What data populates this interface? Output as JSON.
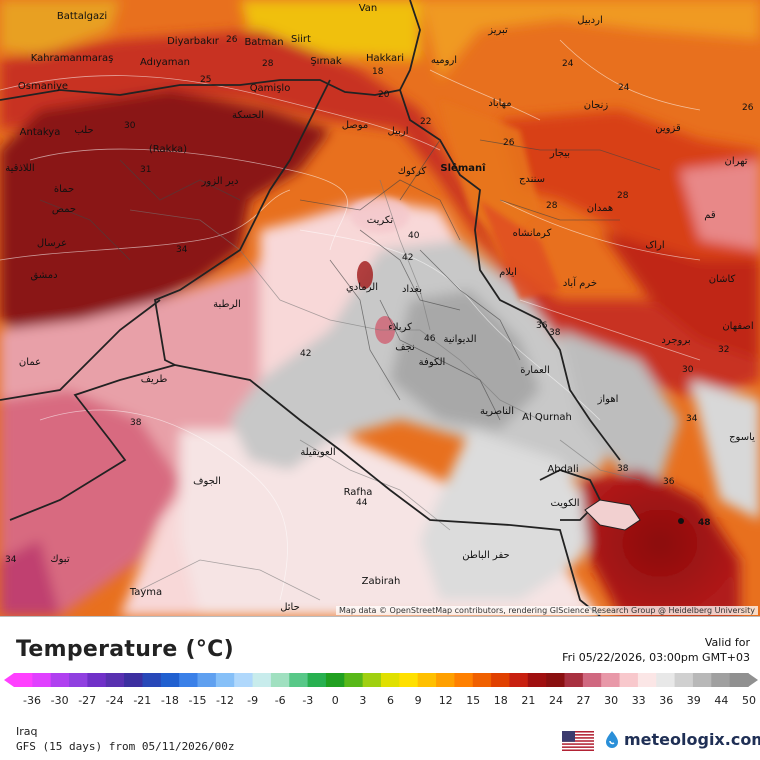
{
  "map": {
    "attribution": "Map data © OpenStreetMap contributors, rendering GIScience Research Group @ Heidelberg University",
    "places": [
      {
        "name": "Battalgazi"
      },
      {
        "name": "Kahramanmaraş"
      },
      {
        "name": "Diyarbakır"
      },
      {
        "name": "Batman"
      },
      {
        "name": "Siirt"
      },
      {
        "name": "Van"
      },
      {
        "name": "Hakkari"
      },
      {
        "name": "Şırnak"
      },
      {
        "name": "Adıyaman"
      },
      {
        "name": "Osmaniye"
      },
      {
        "name": "Qamişlo"
      },
      {
        "name": "Antakya"
      },
      {
        "name": "(Rakka)"
      },
      {
        "name": "Slêmanî"
      },
      {
        "name": "Al Qurnah"
      },
      {
        "name": "Abdali"
      },
      {
        "name": "Rafha"
      },
      {
        "name": "Zabirah"
      },
      {
        "name": "Tayma"
      },
      {
        "name": "حلب"
      },
      {
        "name": "الحسكة"
      },
      {
        "name": "موصل"
      },
      {
        "name": "اربيل"
      },
      {
        "name": "كركوك"
      },
      {
        "name": "تكريت"
      },
      {
        "name": "بغداد"
      },
      {
        "name": "كربلاء"
      },
      {
        "name": "الكوفة"
      },
      {
        "name": "العمارة"
      },
      {
        "name": "الناصرية"
      },
      {
        "name": "الرطبة"
      },
      {
        "name": "طريف"
      },
      {
        "name": "الجوف"
      },
      {
        "name": "العويقيلة"
      },
      {
        "name": "الكويت"
      },
      {
        "name": "حفر الباطن"
      },
      {
        "name": "تبوك"
      },
      {
        "name": "حائل"
      },
      {
        "name": "تبريز"
      },
      {
        "name": "اردبيل"
      },
      {
        "name": "ارومیه"
      },
      {
        "name": "زنجان"
      },
      {
        "name": "قزوين"
      },
      {
        "name": "تهران"
      },
      {
        "name": "همدان"
      },
      {
        "name": "كرمانشاه"
      },
      {
        "name": "اراک"
      },
      {
        "name": "قم"
      },
      {
        "name": "ایلام"
      },
      {
        "name": "اهواز"
      },
      {
        "name": "دمشق"
      },
      {
        "name": "حمص"
      },
      {
        "name": "حماة"
      },
      {
        "name": "الرمادي"
      },
      {
        "name": "سنندج"
      },
      {
        "name": "بیجار"
      },
      {
        "name": "مهاباد"
      },
      {
        "name": "کاشان"
      },
      {
        "name": "اصفهان"
      },
      {
        "name": "ياسوج"
      },
      {
        "name": "بروجرد"
      },
      {
        "name": "خرم آباد"
      },
      {
        "name": "دیر الزور"
      },
      {
        "name": "عمان"
      },
      {
        "name": "اللاذقية"
      },
      {
        "name": "عرسال"
      },
      {
        "name": "نجف"
      },
      {
        "name": "الديوانية"
      }
    ],
    "isotherms": [
      "26",
      "25",
      "28",
      "30",
      "31",
      "34",
      "18",
      "20",
      "24",
      "24",
      "22",
      "26",
      "28",
      "40",
      "42",
      "42",
      "46",
      "38",
      "36",
      "38",
      "38",
      "36",
      "48",
      "44",
      "34",
      "30",
      "34",
      "28",
      "32",
      "26"
    ]
  },
  "legend": {
    "title": "Temperature (°C)",
    "valid_label": "Valid for",
    "valid_time": "Fri 05/22/2026, 03:00pm GMT+03",
    "ticks": [
      "-36",
      "-30",
      "-27",
      "-24",
      "-21",
      "-18",
      "-15",
      "-12",
      "-9",
      "-6",
      "-3",
      "0",
      "3",
      "6",
      "9",
      "12",
      "15",
      "18",
      "21",
      "24",
      "27",
      "30",
      "33",
      "36",
      "39",
      "44",
      "50"
    ],
    "colors": [
      "#ff40ff",
      "#e040ff",
      "#b040f0",
      "#9040e0",
      "#7030c8",
      "#5830b0",
      "#3c2fa0",
      "#2848b8",
      "#2060d0",
      "#3a80e8",
      "#5fa0f0",
      "#86c0f8",
      "#b0d8fc",
      "#c8ecec",
      "#a0e0c0",
      "#58c888",
      "#28b050",
      "#20a020",
      "#58b818",
      "#a0d010",
      "#e0e000",
      "#ffe000",
      "#ffc000",
      "#ffa000",
      "#ff8000",
      "#f06000",
      "#e04000",
      "#c82010",
      "#a01010",
      "#8a1010",
      "#a83040",
      "#d06880",
      "#e898a8",
      "#f8c8cc",
      "#fbe6e6",
      "#e8e8e8",
      "#d0d0d0",
      "#b8b8b8",
      "#a0a0a0",
      "#909090"
    ],
    "region": "Iraq",
    "model": "GFS (15 days) from 05/11/2026/00z",
    "brand": "meteologix.com"
  }
}
